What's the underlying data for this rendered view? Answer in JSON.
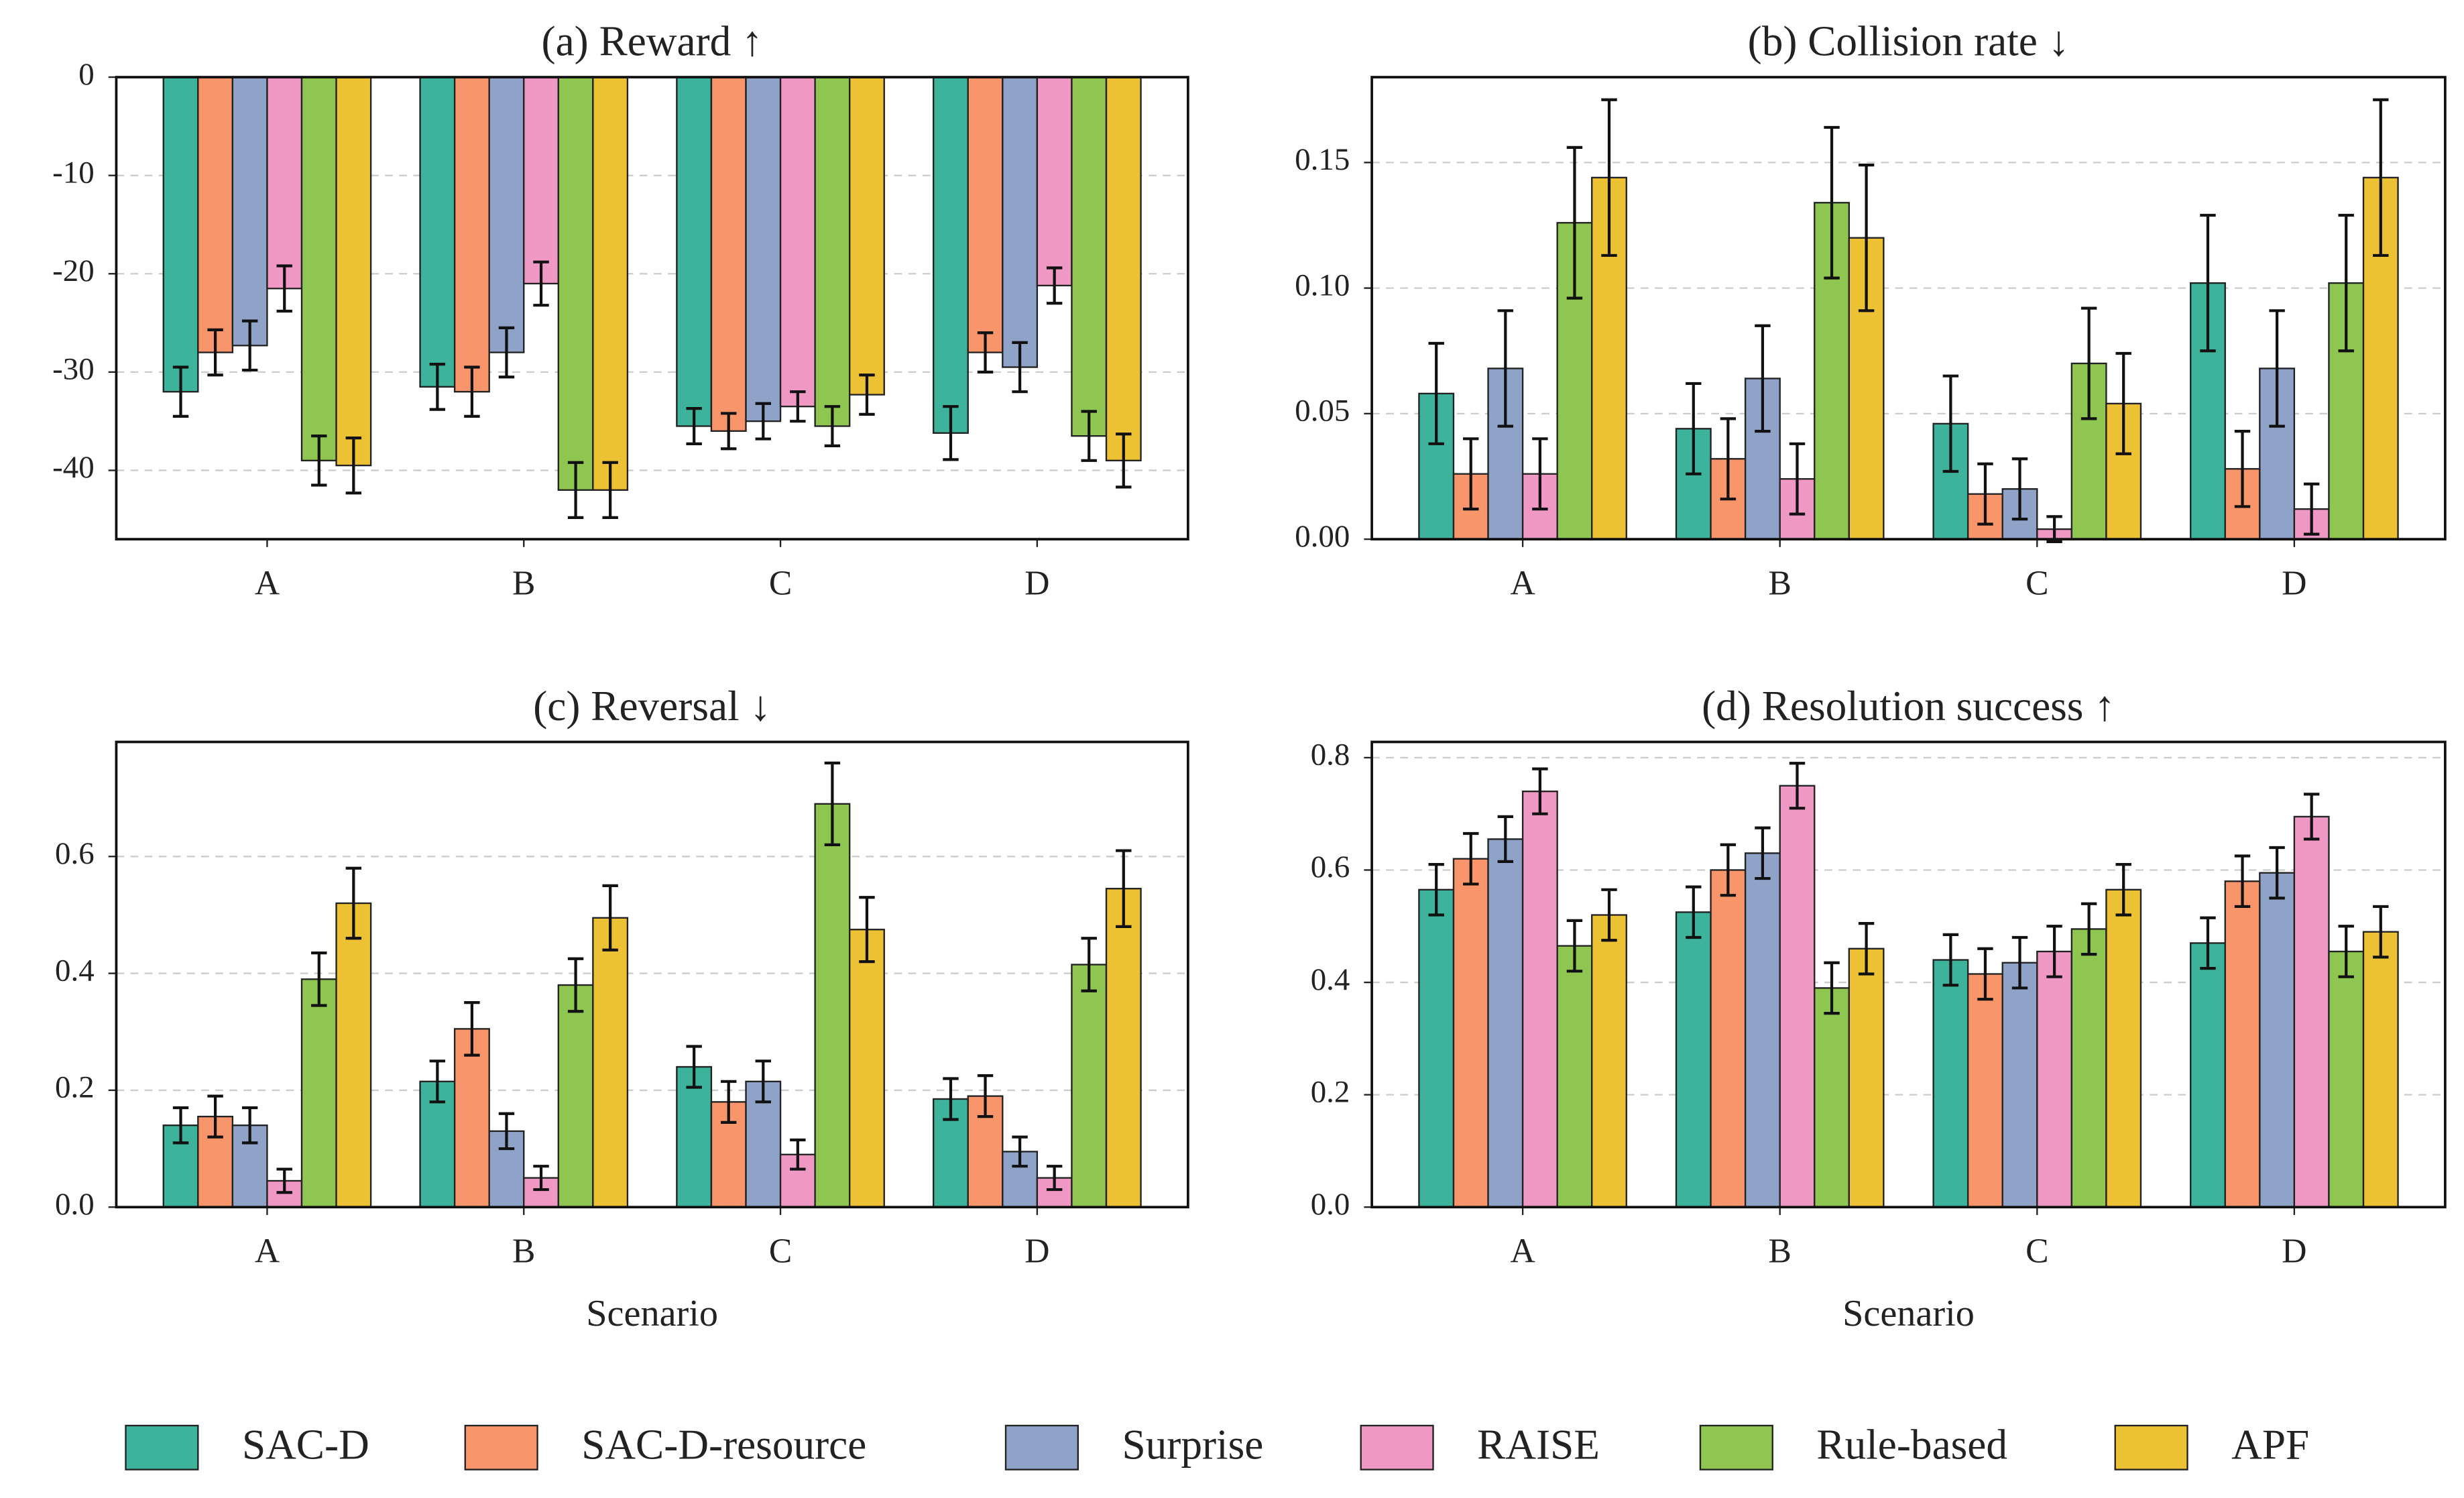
{
  "chart_data": [
    {
      "type": "bar",
      "title": "(a) Reward ↑",
      "categories": [
        "A",
        "B",
        "C",
        "D"
      ],
      "ylim": [
        -47,
        0
      ],
      "yticks": [
        0,
        -10,
        -20,
        -30,
        -40
      ],
      "grid": true,
      "series": [
        {
          "name": "SAC-D",
          "color": "#3cb39a",
          "values": [
            -32,
            -31.5,
            -35.5,
            -36.2
          ],
          "errors": [
            2.5,
            2.3,
            1.8,
            2.7
          ]
        },
        {
          "name": "SAC-D-resource",
          "color": "#f9956b",
          "values": [
            -28,
            -32,
            -36,
            -28
          ],
          "errors": [
            2.3,
            2.5,
            1.8,
            2
          ]
        },
        {
          "name": "Surprise",
          "color": "#8fa3c8",
          "values": [
            -27.3,
            -28,
            -35,
            -29.5
          ],
          "errors": [
            2.5,
            2.5,
            1.8,
            2.5
          ]
        },
        {
          "name": "RAISE",
          "color": "#ef98c4",
          "values": [
            -21.5,
            -21,
            -33.5,
            -21.2
          ],
          "errors": [
            2.3,
            2.2,
            1.5,
            1.8
          ]
        },
        {
          "name": "Rule-based",
          "color": "#8ec651",
          "values": [
            -39,
            -42,
            -35.5,
            -36.5
          ],
          "errors": [
            2.5,
            2.8,
            2,
            2.5
          ]
        },
        {
          "name": "APF",
          "color": "#ecc133",
          "values": [
            -39.5,
            -42,
            -32.3,
            -39
          ],
          "errors": [
            2.8,
            2.8,
            2,
            2.7
          ]
        }
      ]
    },
    {
      "type": "bar",
      "title": "(b) Collision rate ↓",
      "categories": [
        "A",
        "B",
        "C",
        "D"
      ],
      "ylim": [
        0,
        0.184
      ],
      "yticks": [
        {
          "value": 0,
          "label": "0.00"
        },
        0.05,
        {
          "value": 0.1,
          "label": "0.10"
        },
        0.15
      ],
      "grid": true,
      "series": [
        {
          "name": "SAC-D",
          "color": "#3cb39a",
          "values": [
            0.058,
            0.044,
            0.046,
            0.102
          ],
          "errors": [
            0.02,
            0.018,
            0.019,
            0.027
          ]
        },
        {
          "name": "SAC-D-resource",
          "color": "#f9956b",
          "values": [
            0.026,
            0.032,
            0.018,
            0.028
          ],
          "errors": [
            0.014,
            0.016,
            0.012,
            0.015
          ]
        },
        {
          "name": "Surprise",
          "color": "#8fa3c8",
          "values": [
            0.068,
            0.064,
            0.02,
            0.068
          ],
          "errors": [
            0.023,
            0.021,
            0.012,
            0.023
          ]
        },
        {
          "name": "RAISE",
          "color": "#ef98c4",
          "values": [
            0.026,
            0.024,
            0.004,
            0.012
          ],
          "errors": [
            0.014,
            0.014,
            0.005,
            0.01
          ]
        },
        {
          "name": "Rule-based",
          "color": "#8ec651",
          "values": [
            0.126,
            0.134,
            0.07,
            0.102
          ],
          "errors": [
            0.03,
            0.03,
            0.022,
            0.027
          ]
        },
        {
          "name": "APF",
          "color": "#ecc133",
          "values": [
            0.144,
            0.12,
            0.054,
            0.144
          ],
          "errors": [
            0.031,
            0.029,
            0.02,
            0.031
          ]
        }
      ]
    },
    {
      "type": "bar",
      "title": "(c) Reversal ↓",
      "x_label": "Scenario",
      "categories": [
        "A",
        "B",
        "C",
        "D"
      ],
      "ylim": [
        0,
        0.796
      ],
      "yticks": [
        {
          "value": 0,
          "label": "0.0"
        },
        0.2,
        0.4,
        0.6
      ],
      "grid": true,
      "series": [
        {
          "name": "SAC-D",
          "color": "#3cb39a",
          "values": [
            0.14,
            0.215,
            0.24,
            0.185
          ],
          "errors": [
            0.03,
            0.035,
            0.035,
            0.035
          ]
        },
        {
          "name": "SAC-D-resource",
          "color": "#f9956b",
          "values": [
            0.155,
            0.305,
            0.18,
            0.19
          ],
          "errors": [
            0.035,
            0.045,
            0.035,
            0.035
          ]
        },
        {
          "name": "Surprise",
          "color": "#8fa3c8",
          "values": [
            0.14,
            0.13,
            0.215,
            0.095
          ],
          "errors": [
            0.03,
            0.03,
            0.035,
            0.025
          ]
        },
        {
          "name": "RAISE",
          "color": "#ef98c4",
          "values": [
            0.045,
            0.05,
            0.09,
            0.05
          ],
          "errors": [
            0.02,
            0.02,
            0.025,
            0.02
          ]
        },
        {
          "name": "Rule-based",
          "color": "#8ec651",
          "values": [
            0.39,
            0.38,
            0.69,
            0.415
          ],
          "errors": [
            0.045,
            0.045,
            0.07,
            0.045
          ]
        },
        {
          "name": "APF",
          "color": "#ecc133",
          "values": [
            0.52,
            0.495,
            0.475,
            0.545
          ],
          "errors": [
            0.06,
            0.055,
            0.055,
            0.065
          ]
        }
      ]
    },
    {
      "type": "bar",
      "title": "(d) Resolution success ↑",
      "x_label": "Scenario",
      "categories": [
        "A",
        "B",
        "C",
        "D"
      ],
      "ylim": [
        0,
        0.828
      ],
      "yticks": [
        {
          "value": 0,
          "label": "0.0"
        },
        0.2,
        0.4,
        0.6,
        0.8
      ],
      "grid": true,
      "series": [
        {
          "name": "SAC-D",
          "color": "#3cb39a",
          "values": [
            0.565,
            0.525,
            0.44,
            0.47
          ],
          "errors": [
            0.045,
            0.045,
            0.045,
            0.045
          ]
        },
        {
          "name": "SAC-D-resource",
          "color": "#f9956b",
          "values": [
            0.62,
            0.6,
            0.415,
            0.58
          ],
          "errors": [
            0.045,
            0.045,
            0.045,
            0.045
          ]
        },
        {
          "name": "Surprise",
          "color": "#8fa3c8",
          "values": [
            0.655,
            0.63,
            0.435,
            0.595
          ],
          "errors": [
            0.04,
            0.045,
            0.045,
            0.045
          ]
        },
        {
          "name": "RAISE",
          "color": "#ef98c4",
          "values": [
            0.74,
            0.75,
            0.455,
            0.695
          ],
          "errors": [
            0.04,
            0.04,
            0.045,
            0.04
          ]
        },
        {
          "name": "Rule-based",
          "color": "#8ec651",
          "values": [
            0.465,
            0.39,
            0.495,
            0.455
          ],
          "errors": [
            0.045,
            0.045,
            0.045,
            0.045
          ]
        },
        {
          "name": "APF",
          "color": "#ecc133",
          "values": [
            0.52,
            0.46,
            0.565,
            0.49
          ],
          "errors": [
            0.045,
            0.045,
            0.045,
            0.045
          ]
        }
      ]
    }
  ]
}
